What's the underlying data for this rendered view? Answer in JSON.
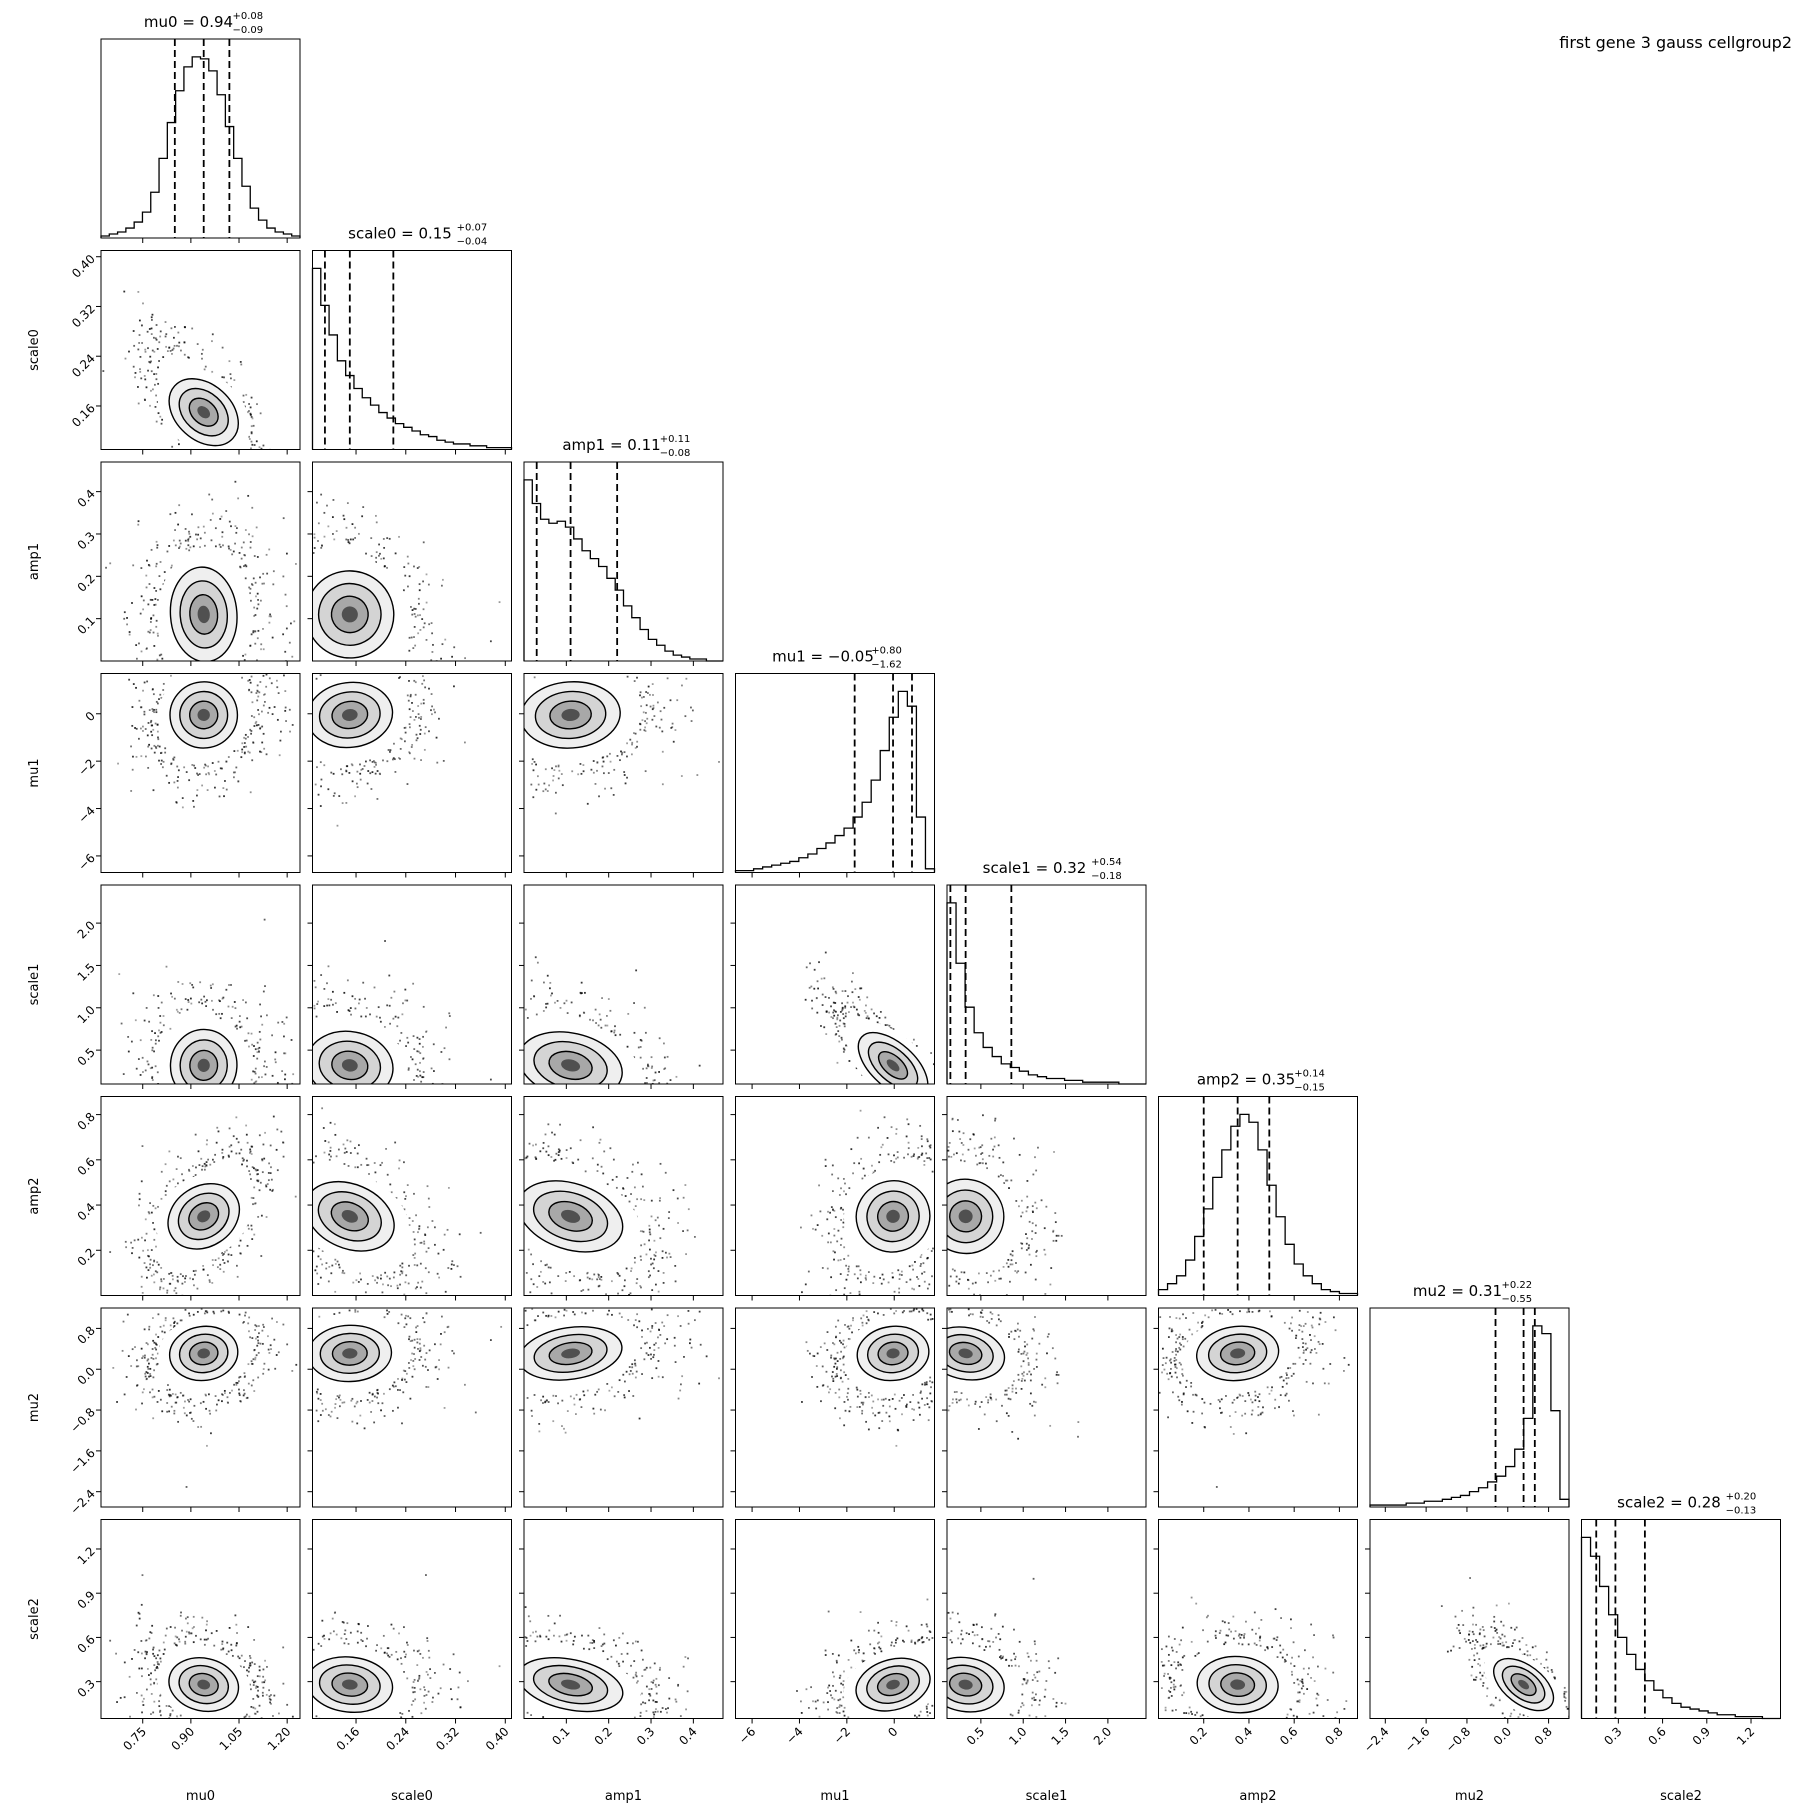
{
  "figure_label": "first gene 3 gauss cellgroup2",
  "chart_data": {
    "type": "corner",
    "parameters": [
      "mu0",
      "scale0",
      "amp1",
      "mu1",
      "scale1",
      "amp2",
      "mu2",
      "scale2"
    ],
    "titles": [
      {
        "param": "mu0",
        "main": "mu0 = 0.94",
        "up": "+0.08",
        "down": "−0.09"
      },
      {
        "param": "scale0",
        "main": "scale0 = 0.15",
        "up": "+0.07",
        "down": "−0.04"
      },
      {
        "param": "amp1",
        "main": "amp1 = 0.11",
        "up": "+0.11",
        "down": "−0.08"
      },
      {
        "param": "mu1",
        "main": "mu1 = −0.05",
        "up": "+0.80",
        "down": "−1.62"
      },
      {
        "param": "scale1",
        "main": "scale1 = 0.32",
        "up": "+0.54",
        "down": "−0.18"
      },
      {
        "param": "amp2",
        "main": "amp2 = 0.35",
        "up": "+0.14",
        "down": "−0.15"
      },
      {
        "param": "mu2",
        "main": "mu2 = 0.31",
        "up": "+0.22",
        "down": "−0.55"
      },
      {
        "param": "scale2",
        "main": "scale2 = 0.28",
        "up": "+0.20",
        "down": "−0.13"
      }
    ],
    "ranges": [
      [
        0.62,
        1.24
      ],
      [
        0.09,
        0.41
      ],
      [
        0.0,
        0.47
      ],
      [
        -6.7,
        1.7
      ],
      [
        0.1,
        2.45
      ],
      [
        0.0,
        0.88
      ],
      [
        -2.7,
        1.2
      ],
      [
        0.05,
        1.4
      ]
    ],
    "ticks": [
      [
        0.75,
        0.9,
        1.05,
        1.2
      ],
      [
        0.16,
        0.24,
        0.32,
        0.4
      ],
      [
        0.1,
        0.2,
        0.3,
        0.4
      ],
      [
        -6,
        -4,
        -2,
        0
      ],
      [
        0.5,
        1.0,
        1.5,
        2.0
      ],
      [
        0.2,
        0.4,
        0.6,
        0.8
      ],
      [
        -2.4,
        -1.6,
        -0.8,
        0.0,
        0.8
      ],
      [
        0.3,
        0.6,
        0.9,
        1.2
      ]
    ],
    "tick_labels": [
      [
        "0.75",
        "0.90",
        "1.05",
        "1.20"
      ],
      [
        "0.16",
        "0.24",
        "0.32",
        "0.40"
      ],
      [
        "0.1",
        "0.2",
        "0.3",
        "0.4"
      ],
      [
        "−6",
        "−4",
        "−2",
        "0"
      ],
      [
        "0.5",
        "1.0",
        "1.5",
        "2.0"
      ],
      [
        "0.2",
        "0.4",
        "0.6",
        "0.8"
      ],
      [
        "−2.4",
        "−1.6",
        "−0.8",
        "0.0",
        "0.8"
      ],
      [
        "0.3",
        "0.6",
        "0.9",
        "1.2"
      ]
    ],
    "quantiles": [
      [
        0.85,
        0.94,
        1.02
      ],
      [
        0.11,
        0.15,
        0.22
      ],
      [
        0.03,
        0.11,
        0.22
      ],
      [
        -1.67,
        -0.05,
        0.75
      ],
      [
        0.14,
        0.32,
        0.86
      ],
      [
        0.2,
        0.35,
        0.49
      ],
      [
        -0.24,
        0.31,
        0.53
      ],
      [
        0.15,
        0.28,
        0.48
      ]
    ],
    "histograms": [
      [
        1,
        2,
        3,
        5,
        8,
        13,
        23,
        40,
        58,
        74,
        86,
        91,
        90,
        84,
        72,
        56,
        40,
        26,
        15,
        9,
        5,
        3,
        2,
        1
      ],
      [
        98,
        78,
        62,
        48,
        40,
        33,
        28,
        24,
        20,
        17,
        14,
        12,
        10,
        8,
        7,
        5,
        4,
        3,
        3,
        2,
        2,
        1,
        1,
        1
      ],
      [
        92,
        80,
        72,
        70,
        71,
        68,
        62,
        56,
        52,
        48,
        42,
        36,
        28,
        22,
        16,
        11,
        8,
        5,
        3,
        2,
        1,
        1,
        0,
        0
      ],
      [
        1,
        1,
        2,
        3,
        4,
        5,
        6,
        8,
        10,
        13,
        16,
        20,
        24,
        30,
        38,
        50,
        66,
        84,
        98,
        90,
        30,
        2
      ],
      [
        99,
        66,
        42,
        28,
        20,
        15,
        11,
        9,
        7,
        5,
        4,
        3,
        3,
        2,
        2,
        1,
        1,
        1,
        1,
        0,
        0,
        0
      ],
      [
        3,
        6,
        10,
        18,
        30,
        44,
        60,
        74,
        86,
        92,
        88,
        74,
        56,
        40,
        26,
        16,
        10,
        6,
        3,
        2,
        1,
        1
      ],
      [
        1,
        1,
        1,
        1,
        2,
        2,
        3,
        3,
        4,
        5,
        6,
        8,
        10,
        13,
        16,
        21,
        30,
        46,
        94,
        90,
        50,
        4
      ],
      [
        96,
        86,
        70,
        55,
        43,
        34,
        26,
        20,
        15,
        11,
        8,
        6,
        5,
        4,
        3,
        2,
        2,
        1,
        1,
        1,
        0,
        0
      ]
    ],
    "correlations": [
      [
        1.0,
        -0.72,
        0.05,
        0.1,
        -0.05,
        0.55,
        0.15,
        -0.25
      ],
      [
        -0.72,
        1.0,
        -0.25,
        0.15,
        -0.2,
        -0.45,
        0.05,
        -0.15
      ],
      [
        0.05,
        -0.25,
        1.0,
        0.1,
        -0.3,
        -0.4,
        0.25,
        -0.35
      ],
      [
        0.1,
        0.15,
        0.1,
        1.0,
        -0.85,
        0.25,
        0.15,
        0.35
      ],
      [
        -0.05,
        -0.2,
        -0.3,
        -0.85,
        1.0,
        -0.15,
        -0.25,
        -0.2
      ],
      [
        0.55,
        -0.45,
        -0.4,
        0.25,
        -0.15,
        1.0,
        0.15,
        -0.1
      ],
      [
        0.15,
        0.05,
        0.25,
        0.15,
        -0.25,
        0.15,
        1.0,
        -0.75
      ],
      [
        -0.25,
        -0.15,
        -0.35,
        0.35,
        -0.2,
        -0.1,
        -0.75,
        1.0
      ]
    ],
    "grid": false,
    "legend": "none"
  }
}
